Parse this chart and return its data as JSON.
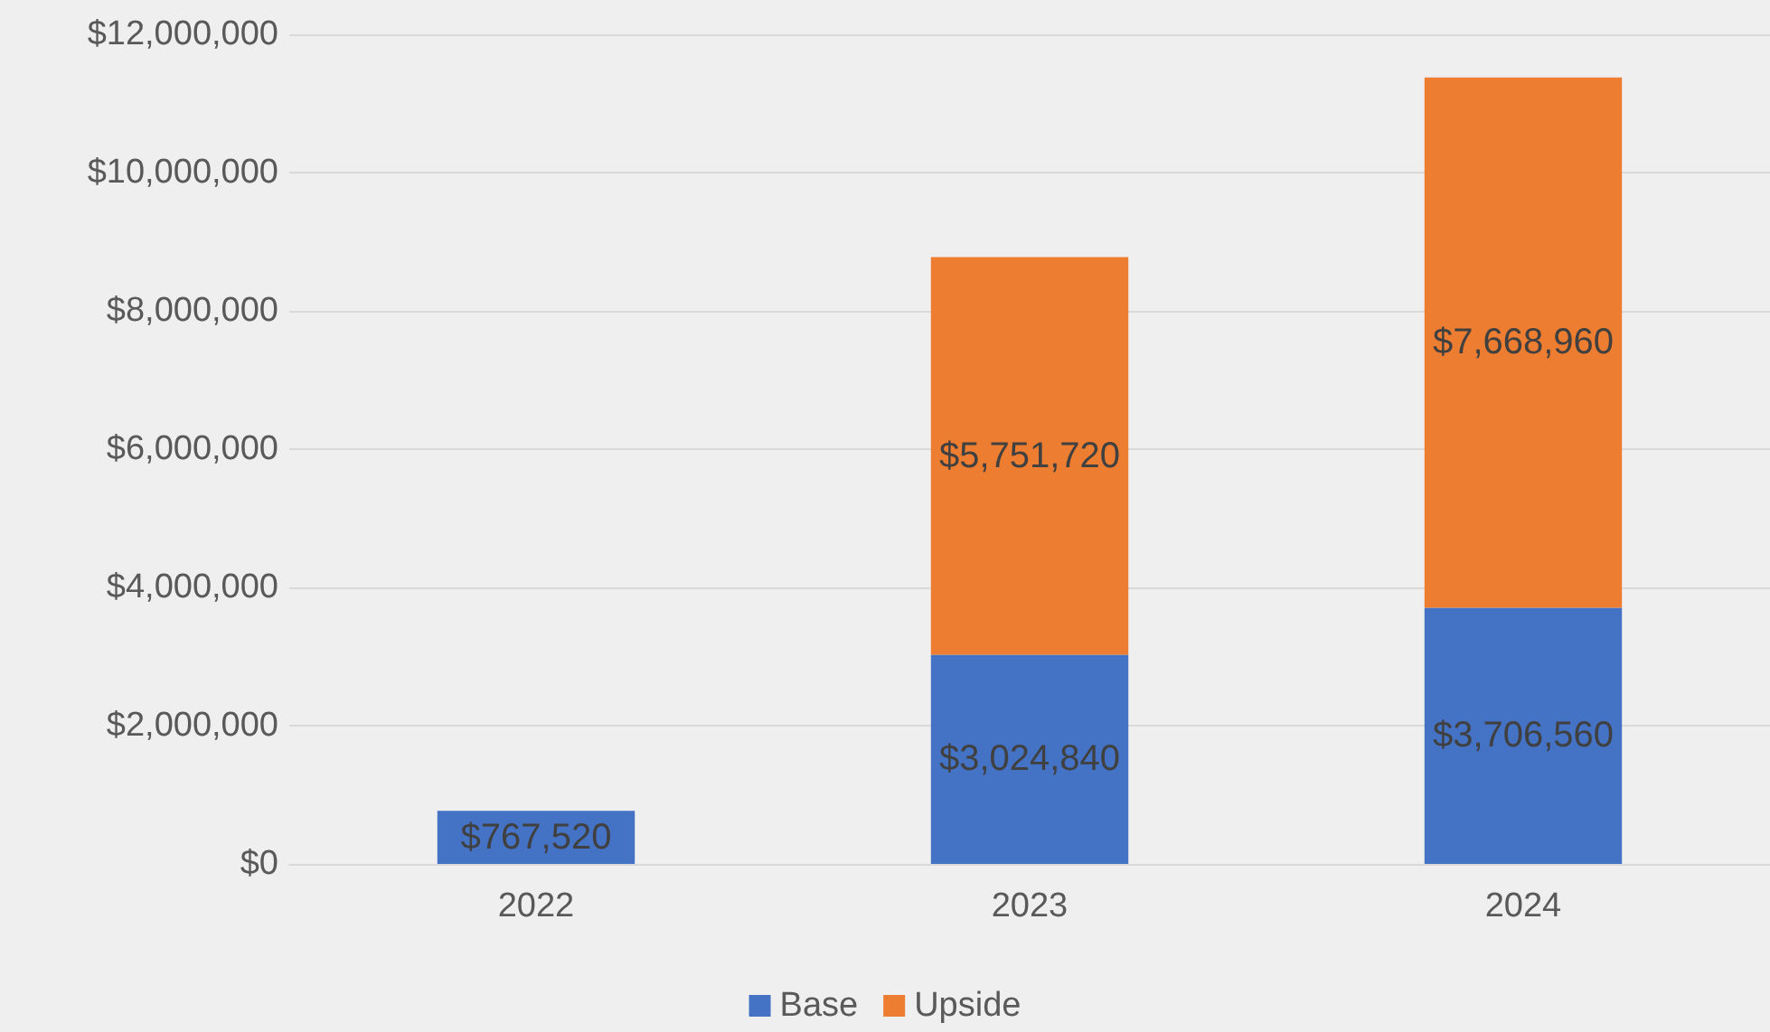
{
  "chart_data": {
    "type": "bar",
    "stacked": true,
    "categories": [
      "2022",
      "2023",
      "2024"
    ],
    "series": [
      {
        "name": "Base",
        "color": "#4472c4",
        "values": [
          767520,
          3024840,
          3706560
        ],
        "value_labels": [
          "$767,520",
          "$3,024,840",
          "$3,706,560"
        ]
      },
      {
        "name": "Upside",
        "color": "#ed7d31",
        "values": [
          null,
          5751720,
          7668960
        ],
        "value_labels": [
          null,
          "$5,751,720",
          "$7,668,960"
        ]
      }
    ],
    "ylim": [
      0,
      12000000
    ],
    "yticks": [
      {
        "value": 0,
        "label": "$0"
      },
      {
        "value": 2000000,
        "label": "$2,000,000"
      },
      {
        "value": 4000000,
        "label": "$4,000,000"
      },
      {
        "value": 6000000,
        "label": "$6,000,000"
      },
      {
        "value": 8000000,
        "label": "$8,000,000"
      },
      {
        "value": 10000000,
        "label": "$10,000,000"
      },
      {
        "value": 12000000,
        "label": "$12,000,000"
      }
    ],
    "grid": "y",
    "legend": "bottom"
  }
}
